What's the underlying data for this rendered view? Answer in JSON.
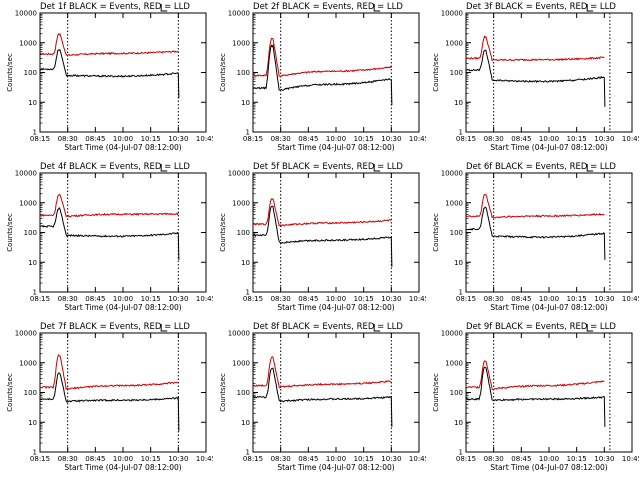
{
  "chart_data": {
    "type": "line",
    "layout": "3x3 grid",
    "common": {
      "xlabel": "Start Time (04-Jul-07 08:12:00)",
      "ylabel": "Counts/sec",
      "x_ticks": [
        "08:15",
        "08:30",
        "08:45",
        "10:00",
        "10:15",
        "10:30",
        "10:45"
      ],
      "y_ticks": [
        "1",
        "10",
        "100",
        "1000",
        "10000"
      ],
      "y_scale": "log",
      "ylim": [
        1,
        10000
      ],
      "series_colors": {
        "events": "#000000",
        "lld": "#cc0000"
      }
    },
    "panels": [
      {
        "title": "Det 1f BLACK = Events, RED = LLD",
        "dotted_lines_at": [
          1,
          5,
          6
        ],
        "lld_profile": {
          "base": 420,
          "peak": 2000,
          "dip": 380,
          "mid": 440,
          "end": 520
        },
        "events_profile": {
          "base": 130,
          "peak": 600,
          "post": 80,
          "mid": 75,
          "end": 95,
          "drop": 14
        }
      },
      {
        "title": "Det 2f BLACK = Events, RED = LLD",
        "dotted_lines_at": [
          1,
          5,
          6
        ],
        "lld_profile": {
          "base": 80,
          "peak": 1400,
          "dip": 75,
          "mid": 110,
          "end": 150
        },
        "events_profile": {
          "base": 30,
          "peak": 800,
          "post": 25,
          "mid": 40,
          "end": 60,
          "drop": 8
        }
      },
      {
        "title": "Det 3f BLACK = Events, RED = LLD",
        "dotted_lines_at": [
          1,
          5.2,
          6
        ],
        "lld_profile": {
          "base": 300,
          "peak": 1600,
          "dip": 260,
          "mid": 270,
          "end": 320
        },
        "events_profile": {
          "base": 120,
          "peak": 550,
          "post": 55,
          "mid": 50,
          "end": 70,
          "drop": 7
        }
      },
      {
        "title": "Det 4f BLACK = Events, RED = LLD",
        "dotted_lines_at": [
          1,
          5,
          6
        ],
        "lld_profile": {
          "base": 380,
          "peak": 1900,
          "dip": 350,
          "mid": 410,
          "end": 430
        },
        "events_profile": {
          "base": 160,
          "peak": 650,
          "post": 80,
          "mid": 75,
          "end": 95,
          "drop": 12
        }
      },
      {
        "title": "Det 5f BLACK = Events, RED = LLD",
        "dotted_lines_at": [
          1,
          5,
          6
        ],
        "lld_profile": {
          "base": 190,
          "peak": 1400,
          "dip": 170,
          "mid": 210,
          "end": 260
        },
        "events_profile": {
          "base": 80,
          "peak": 750,
          "post": 45,
          "mid": 55,
          "end": 70,
          "drop": 7
        }
      },
      {
        "title": "Det 6f BLACK = Events, RED = LLD",
        "dotted_lines_at": [
          1,
          5.2,
          6
        ],
        "lld_profile": {
          "base": 350,
          "peak": 1900,
          "dip": 320,
          "mid": 360,
          "end": 420
        },
        "events_profile": {
          "base": 130,
          "peak": 700,
          "post": 75,
          "mid": 70,
          "end": 95,
          "drop": 12
        }
      },
      {
        "title": "Det 7f BLACK = Events, RED = LLD",
        "dotted_lines_at": [
          1,
          5,
          6
        ],
        "lld_profile": {
          "base": 150,
          "peak": 1800,
          "dip": 130,
          "mid": 170,
          "end": 220
        },
        "events_profile": {
          "base": 60,
          "peak": 450,
          "post": 50,
          "mid": 55,
          "end": 65,
          "drop": 5
        }
      },
      {
        "title": "Det 8f BLACK = Events, RED = LLD",
        "dotted_lines_at": [
          1,
          5,
          6
        ],
        "lld_profile": {
          "base": 170,
          "peak": 1600,
          "dip": 150,
          "mid": 190,
          "end": 240
        },
        "events_profile": {
          "base": 70,
          "peak": 650,
          "post": 50,
          "mid": 60,
          "end": 70,
          "drop": 7
        }
      },
      {
        "title": "Det 9f BLACK = Events, RED = LLD",
        "dotted_lines_at": [
          1,
          5.2,
          6
        ],
        "lld_profile": {
          "base": 150,
          "peak": 1200,
          "dip": 130,
          "mid": 170,
          "end": 240
        },
        "events_profile": {
          "base": 60,
          "peak": 700,
          "post": 55,
          "mid": 60,
          "end": 70,
          "drop": 7
        }
      }
    ]
  }
}
